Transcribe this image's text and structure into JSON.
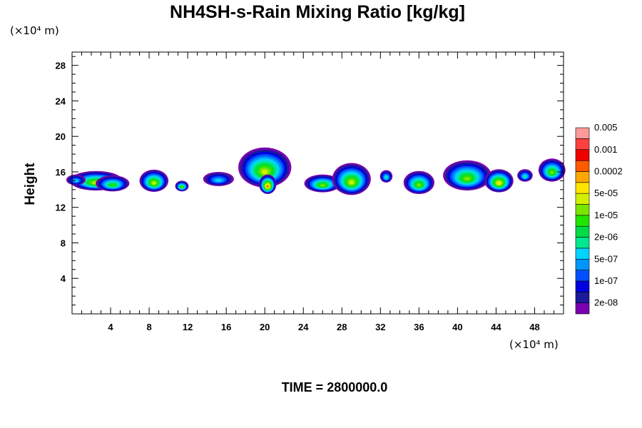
{
  "chart_data": {
    "type": "heatmap",
    "title": "NH4SH-s-Rain Mixing Ratio [kg/kg]",
    "xlabel": "",
    "ylabel": "Height",
    "x_unit": "(×10⁴ m)",
    "y_unit": "(×10⁴ m)",
    "xlim": [
      0,
      51
    ],
    "ylim": [
      0,
      29.5
    ],
    "x_ticks": [
      4,
      8,
      12,
      16,
      20,
      24,
      28,
      32,
      36,
      40,
      44,
      48
    ],
    "y_ticks": [
      4,
      8,
      12,
      16,
      20,
      24,
      28
    ],
    "time_label": "TIME = 2800000.0",
    "colorbar": {
      "colors": [
        "#7a00b0",
        "#1a1a9a",
        "#0000e0",
        "#0050ff",
        "#0096ff",
        "#00d4ff",
        "#00e890",
        "#00dc46",
        "#20e600",
        "#7ae600",
        "#d2f000",
        "#ffe400",
        "#ffa800",
        "#ff5a00",
        "#f00000",
        "#ff4040",
        "#ff9a9a"
      ],
      "labels": [
        "2e-08",
        "1e-07",
        "5e-07",
        "2e-06",
        "1e-05",
        "5e-05",
        "0.0002",
        "0.001",
        "0.005"
      ]
    },
    "clouds": [
      {
        "x": 2.5,
        "y": 15.0,
        "w": 5.5,
        "h": 2.2,
        "peak": 10
      },
      {
        "x": 4.2,
        "y": 14.7,
        "w": 3.5,
        "h": 1.8,
        "peak": 8
      },
      {
        "x": 0.4,
        "y": 15.1,
        "w": 2.0,
        "h": 1.2,
        "peak": 5
      },
      {
        "x": 8.5,
        "y": 15.0,
        "w": 3.0,
        "h": 2.5,
        "peak": 10
      },
      {
        "x": 11.4,
        "y": 14.4,
        "w": 1.4,
        "h": 1.2,
        "peak": 9
      },
      {
        "x": 15.2,
        "y": 15.2,
        "w": 3.2,
        "h": 1.6,
        "peak": 5
      },
      {
        "x": 20.0,
        "y": 16.5,
        "w": 5.5,
        "h": 4.5,
        "peak": 10
      },
      {
        "x": 20.3,
        "y": 14.6,
        "w": 1.8,
        "h": 2.2,
        "peak": 13
      },
      {
        "x": 26.0,
        "y": 14.7,
        "w": 3.8,
        "h": 2.0,
        "peak": 9
      },
      {
        "x": 29.0,
        "y": 15.2,
        "w": 4.0,
        "h": 3.6,
        "peak": 10
      },
      {
        "x": 32.6,
        "y": 15.5,
        "w": 1.3,
        "h": 1.4,
        "peak": 6
      },
      {
        "x": 36.0,
        "y": 14.8,
        "w": 3.2,
        "h": 2.6,
        "peak": 9
      },
      {
        "x": 41.0,
        "y": 15.6,
        "w": 5.0,
        "h": 3.4,
        "peak": 9
      },
      {
        "x": 44.3,
        "y": 15.0,
        "w": 3.0,
        "h": 2.6,
        "peak": 11
      },
      {
        "x": 47.0,
        "y": 15.6,
        "w": 1.6,
        "h": 1.4,
        "peak": 6
      },
      {
        "x": 49.8,
        "y": 16.2,
        "w": 2.8,
        "h": 2.6,
        "peak": 9
      }
    ]
  }
}
